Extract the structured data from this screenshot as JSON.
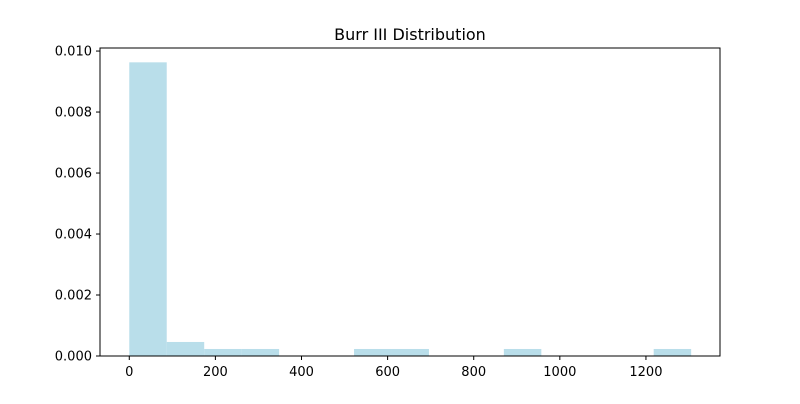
{
  "chart_data": {
    "type": "bar",
    "title": "Burr III Distribution",
    "xlabel": "",
    "ylabel": "",
    "xlim": [
      -68,
      1372
    ],
    "ylim": [
      0,
      0.0101
    ],
    "xticks": [
      0,
      200,
      400,
      600,
      800,
      1000,
      1200
    ],
    "xtick_labels": [
      "0",
      "200",
      "400",
      "600",
      "800",
      "1000",
      "1200"
    ],
    "yticks": [
      0.0,
      0.002,
      0.004,
      0.006,
      0.008,
      0.01
    ],
    "ytick_labels": [
      "0.000",
      "0.002",
      "0.004",
      "0.006",
      "0.008",
      "0.010"
    ],
    "grid": false,
    "bar_color": "#add8e6",
    "bar_opacity": 0.85,
    "bins": [
      {
        "x0": 0,
        "x1": 87,
        "value": 0.00963
      },
      {
        "x0": 87,
        "x1": 174,
        "value": 0.00046
      },
      {
        "x0": 174,
        "x1": 261,
        "value": 0.00023
      },
      {
        "x0": 261,
        "x1": 348,
        "value": 0.00023
      },
      {
        "x0": 348,
        "x1": 435,
        "value": 0
      },
      {
        "x0": 435,
        "x1": 522,
        "value": 0
      },
      {
        "x0": 522,
        "x1": 609,
        "value": 0.00023
      },
      {
        "x0": 609,
        "x1": 696,
        "value": 0.00023
      },
      {
        "x0": 696,
        "x1": 783,
        "value": 0
      },
      {
        "x0": 783,
        "x1": 870,
        "value": 0
      },
      {
        "x0": 870,
        "x1": 957,
        "value": 0.00023
      },
      {
        "x0": 957,
        "x1": 1044,
        "value": 0
      },
      {
        "x0": 1044,
        "x1": 1131,
        "value": 0
      },
      {
        "x0": 1131,
        "x1": 1218,
        "value": 0
      },
      {
        "x0": 1218,
        "x1": 1305,
        "value": 0.00023
      }
    ]
  }
}
